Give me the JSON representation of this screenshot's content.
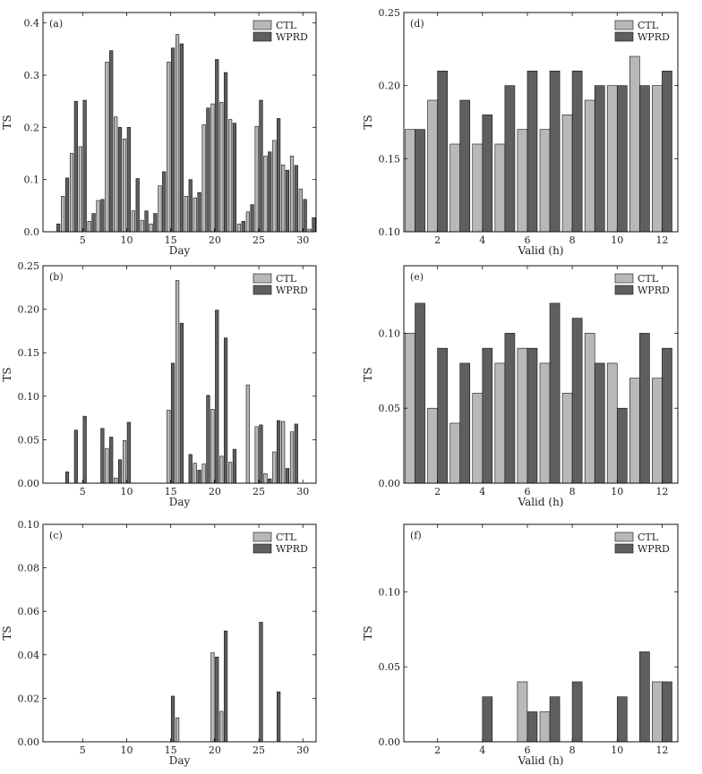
{
  "colors": {
    "ctl": "#b8b8b8",
    "wprd": "#5f5f5f",
    "edge": "#111111"
  },
  "chart_data": [
    {
      "id": "a",
      "type": "bar",
      "panel_label": "(a)",
      "xlabel": "Day",
      "ylabel": "TS",
      "xlim": [
        0.5,
        31.5
      ],
      "ylim": [
        0,
        0.42
      ],
      "xticks": [
        5,
        10,
        15,
        20,
        25,
        30
      ],
      "xtick_labels": [
        "5",
        "10",
        "15",
        "20",
        "25",
        "30"
      ],
      "yticks": [
        0,
        0.1,
        0.2,
        0.3,
        0.4
      ],
      "ytick_labels": [
        "0.0",
        "0.1",
        "0.2",
        "0.3",
        "0.4"
      ],
      "x": [
        1,
        2,
        3,
        4,
        5,
        6,
        7,
        8,
        9,
        10,
        11,
        12,
        13,
        14,
        15,
        16,
        17,
        18,
        19,
        20,
        21,
        22,
        23,
        24,
        25,
        26,
        27,
        28,
        29,
        30,
        31
      ],
      "series": [
        {
          "name": "CTL",
          "values": [
            0,
            0,
            0.068,
            0.15,
            0.163,
            0.02,
            0.06,
            0.325,
            0.22,
            0.178,
            0.04,
            0.022,
            0.015,
            0.088,
            0.325,
            0.378,
            0.068,
            0.065,
            0.205,
            0.245,
            0.248,
            0.215,
            0.015,
            0.038,
            0.202,
            0.145,
            0.175,
            0.128,
            0.145,
            0.082,
            0.005
          ]
        },
        {
          "name": "WPRD",
          "values": [
            0,
            0.015,
            0.103,
            0.25,
            0.252,
            0.035,
            0.062,
            0.347,
            0.2,
            0.2,
            0.102,
            0.04,
            0.035,
            0.115,
            0.352,
            0.36,
            0.1,
            0.075,
            0.237,
            0.33,
            0.305,
            0.208,
            0.02,
            0.052,
            0.252,
            0.153,
            0.217,
            0.118,
            0.127,
            0.062,
            0.027
          ]
        }
      ],
      "legend": [
        "CTL",
        "WPRD"
      ]
    },
    {
      "id": "d",
      "type": "bar",
      "panel_label": "(d)",
      "xlabel": "Valid (h)",
      "ylabel": "TS",
      "xlim": [
        0.5,
        12.7
      ],
      "ylim": [
        0.1,
        0.25
      ],
      "xticks": [
        2,
        4,
        6,
        8,
        10,
        12
      ],
      "xtick_labels": [
        "2",
        "4",
        "6",
        "8",
        "10",
        "12"
      ],
      "yticks": [
        0.1,
        0.15,
        0.2,
        0.25
      ],
      "ytick_labels": [
        "0.10",
        "0.15",
        "0.20",
        "0.25"
      ],
      "x": [
        1,
        2,
        3,
        4,
        5,
        6,
        7,
        8,
        9,
        10,
        11,
        12
      ],
      "series": [
        {
          "name": "CTL",
          "values": [
            0.17,
            0.19,
            0.16,
            0.16,
            0.16,
            0.17,
            0.17,
            0.18,
            0.19,
            0.2,
            0.22,
            0.2
          ]
        },
        {
          "name": "WPRD",
          "values": [
            0.17,
            0.21,
            0.19,
            0.18,
            0.2,
            0.21,
            0.21,
            0.21,
            0.2,
            0.2,
            0.2,
            0.21
          ]
        }
      ],
      "legend": [
        "CTL",
        "WPRD"
      ]
    },
    {
      "id": "b",
      "type": "bar",
      "panel_label": "(b)",
      "xlabel": "Day",
      "ylabel": "TS",
      "xlim": [
        0.5,
        31.5
      ],
      "ylim": [
        0,
        0.25
      ],
      "xticks": [
        5,
        10,
        15,
        20,
        25,
        30
      ],
      "xtick_labels": [
        "5",
        "10",
        "15",
        "20",
        "25",
        "30"
      ],
      "yticks": [
        0,
        0.05,
        0.1,
        0.15,
        0.2,
        0.25
      ],
      "ytick_labels": [
        "0.00",
        "0.05",
        "0.10",
        "0.15",
        "0.20",
        "0.25"
      ],
      "x": [
        1,
        2,
        3,
        4,
        5,
        6,
        7,
        8,
        9,
        10,
        11,
        12,
        13,
        14,
        15,
        16,
        17,
        18,
        19,
        20,
        21,
        22,
        23,
        24,
        25,
        26,
        27,
        28,
        29,
        30,
        31
      ],
      "series": [
        {
          "name": "CTL",
          "values": [
            0,
            0,
            0,
            0,
            0,
            0,
            0,
            0.04,
            0.006,
            0.049,
            0,
            0,
            0,
            0,
            0.084,
            0.233,
            0,
            0.023,
            0.022,
            0.085,
            0.031,
            0.024,
            0,
            0.113,
            0.065,
            0.011,
            0.036,
            0.071,
            0.059,
            0,
            0
          ]
        },
        {
          "name": "WPRD",
          "values": [
            0,
            0,
            0.013,
            0.061,
            0.077,
            0,
            0.063,
            0.053,
            0.027,
            0.07,
            0,
            0,
            0,
            0,
            0.138,
            0.184,
            0.033,
            0.015,
            0.101,
            0.199,
            0.167,
            0.039,
            0,
            0,
            0.067,
            0.005,
            0.072,
            0.017,
            0.068,
            0,
            0
          ]
        }
      ],
      "legend": [
        "CTL",
        "WPRD"
      ]
    },
    {
      "id": "e",
      "type": "bar",
      "panel_label": "(e)",
      "xlabel": "Valid (h)",
      "ylabel": "TS",
      "xlim": [
        0.5,
        12.7
      ],
      "ylim": [
        0,
        0.145
      ],
      "xticks": [
        2,
        4,
        6,
        8,
        10,
        12
      ],
      "xtick_labels": [
        "2",
        "4",
        "6",
        "8",
        "10",
        "12"
      ],
      "yticks": [
        0,
        0.05,
        0.1
      ],
      "ytick_labels": [
        "0.00",
        "0.05",
        "0.10"
      ],
      "x": [
        1,
        2,
        3,
        4,
        5,
        6,
        7,
        8,
        9,
        10,
        11,
        12
      ],
      "series": [
        {
          "name": "CTL",
          "values": [
            0.1,
            0.05,
            0.04,
            0.06,
            0.08,
            0.09,
            0.08,
            0.06,
            0.1,
            0.08,
            0.07,
            0.07
          ]
        },
        {
          "name": "WPRD",
          "values": [
            0.12,
            0.09,
            0.08,
            0.09,
            0.1,
            0.09,
            0.12,
            0.11,
            0.08,
            0.05,
            0.1,
            0.09
          ]
        }
      ],
      "legend": [
        "CTL",
        "WPRD"
      ]
    },
    {
      "id": "c",
      "type": "bar",
      "panel_label": "(c)",
      "xlabel": "Day",
      "ylabel": "TS",
      "xlim": [
        0.5,
        31.5
      ],
      "ylim": [
        0,
        0.1
      ],
      "xticks": [
        5,
        10,
        15,
        20,
        25,
        30
      ],
      "xtick_labels": [
        "5",
        "10",
        "15",
        "20",
        "25",
        "30"
      ],
      "yticks": [
        0,
        0.02,
        0.04,
        0.06,
        0.08,
        0.1
      ],
      "ytick_labels": [
        "0.00",
        "0.02",
        "0.04",
        "0.06",
        "0.08",
        "0.10"
      ],
      "x": [
        1,
        2,
        3,
        4,
        5,
        6,
        7,
        8,
        9,
        10,
        11,
        12,
        13,
        14,
        15,
        16,
        17,
        18,
        19,
        20,
        21,
        22,
        23,
        24,
        25,
        26,
        27,
        28,
        29,
        30,
        31
      ],
      "series": [
        {
          "name": "CTL",
          "values": [
            0,
            0,
            0,
            0,
            0,
            0,
            0,
            0,
            0,
            0,
            0,
            0,
            0,
            0,
            0,
            0.011,
            0,
            0,
            0,
            0.041,
            0.014,
            0,
            0,
            0,
            0,
            0,
            0,
            0,
            0,
            0,
            0
          ]
        },
        {
          "name": "WPRD",
          "values": [
            0,
            0,
            0,
            0,
            0,
            0,
            0,
            0,
            0,
            0,
            0,
            0,
            0,
            0,
            0.021,
            0,
            0,
            0,
            0,
            0.039,
            0.051,
            0,
            0,
            0,
            0.055,
            0,
            0.023,
            0,
            0,
            0,
            0
          ]
        }
      ],
      "legend": [
        "CTL",
        "WPRD"
      ]
    },
    {
      "id": "f",
      "type": "bar",
      "panel_label": "(f)",
      "xlabel": "Valid (h)",
      "ylabel": "TS",
      "xlim": [
        0.5,
        12.7
      ],
      "ylim": [
        0,
        0.145
      ],
      "xticks": [
        2,
        4,
        6,
        8,
        10,
        12
      ],
      "xtick_labels": [
        "2",
        "4",
        "6",
        "8",
        "10",
        "12"
      ],
      "yticks": [
        0,
        0.05,
        0.1
      ],
      "ytick_labels": [
        "0.00",
        "0.05",
        "0.10"
      ],
      "x": [
        1,
        2,
        3,
        4,
        5,
        6,
        7,
        8,
        9,
        10,
        11,
        12
      ],
      "series": [
        {
          "name": "CTL",
          "values": [
            0,
            0,
            0,
            0,
            0,
            0.04,
            0.02,
            0,
            0,
            0,
            0,
            0.04
          ]
        },
        {
          "name": "WPRD",
          "values": [
            0,
            0,
            0,
            0.03,
            0,
            0.02,
            0.03,
            0.04,
            0,
            0.03,
            0.06,
            0.04
          ]
        }
      ],
      "legend": [
        "CTL",
        "WPRD"
      ]
    }
  ]
}
